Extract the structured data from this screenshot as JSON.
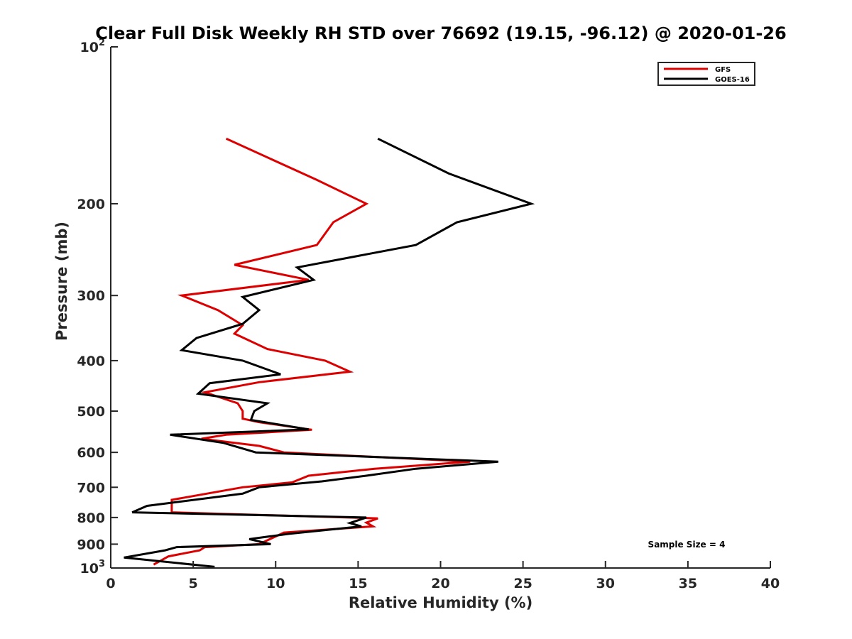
{
  "chart_data": {
    "type": "line",
    "title": "Clear Full Disk Weekly RH STD over 76692 (19.15, -96.12) @ 2020-01-26",
    "xlabel": "Relative Humidity (%)",
    "ylabel": "Pressure (mb)",
    "xlim": [
      0,
      40
    ],
    "ylim": [
      100,
      1000
    ],
    "yscale": "log",
    "yreversed": true,
    "xticks": [
      0,
      5,
      10,
      15,
      20,
      25,
      30,
      35,
      40
    ],
    "xtick_labels": [
      "0",
      "5",
      "10",
      "15",
      "20",
      "25",
      "30",
      "35",
      "40"
    ],
    "yticks": [
      {
        "value": 100,
        "base": "10",
        "exp": "2"
      },
      {
        "value": 200,
        "label": "200"
      },
      {
        "value": 300,
        "label": "300"
      },
      {
        "value": 400,
        "label": "400"
      },
      {
        "value": 500,
        "label": "500"
      },
      {
        "value": 600,
        "label": "600"
      },
      {
        "value": 700,
        "label": "700"
      },
      {
        "value": 800,
        "label": "800"
      },
      {
        "value": 900,
        "label": "900"
      },
      {
        "value": 1000,
        "base": "10",
        "exp": "3"
      }
    ],
    "grid": false,
    "legend_position": "top-right",
    "annotation": "Sample Size = 4",
    "series": [
      {
        "name": "GFS",
        "color": "#dd0000",
        "points": [
          [
            7.0,
            150
          ],
          [
            12.5,
            180
          ],
          [
            15.5,
            200
          ],
          [
            13.5,
            217
          ],
          [
            12.5,
            240
          ],
          [
            7.5,
            262
          ],
          [
            12.0,
            280
          ],
          [
            4.3,
            300
          ],
          [
            6.5,
            320
          ],
          [
            8.0,
            342
          ],
          [
            7.5,
            355
          ],
          [
            9.5,
            380
          ],
          [
            13.0,
            400
          ],
          [
            14.5,
            420
          ],
          [
            9.0,
            440
          ],
          [
            5.7,
            460
          ],
          [
            7.7,
            483
          ],
          [
            8.0,
            500
          ],
          [
            8.0,
            517
          ],
          [
            9.0,
            525
          ],
          [
            12.2,
            543
          ],
          [
            7.0,
            555
          ],
          [
            5.5,
            565
          ],
          [
            9.0,
            583
          ],
          [
            10.5,
            600
          ],
          [
            21.8,
            625
          ],
          [
            16.0,
            645
          ],
          [
            12.0,
            665
          ],
          [
            11.0,
            685
          ],
          [
            8.0,
            700
          ],
          [
            3.7,
            740
          ],
          [
            3.7,
            782
          ],
          [
            16.2,
            803
          ],
          [
            15.5,
            818
          ],
          [
            15.9,
            832
          ],
          [
            10.5,
            855
          ],
          [
            9.0,
            900
          ],
          [
            5.7,
            912
          ],
          [
            5.4,
            925
          ],
          [
            3.5,
            950
          ],
          [
            2.6,
            985
          ]
        ]
      },
      {
        "name": "GOES-16",
        "color": "#000000",
        "points": [
          [
            16.2,
            150
          ],
          [
            20.5,
            175
          ],
          [
            25.5,
            200
          ],
          [
            21.0,
            217
          ],
          [
            18.5,
            240
          ],
          [
            11.3,
            265
          ],
          [
            12.3,
            280
          ],
          [
            8.0,
            302
          ],
          [
            9.0,
            320
          ],
          [
            8.0,
            340
          ],
          [
            5.2,
            362
          ],
          [
            4.3,
            382
          ],
          [
            8.0,
            400
          ],
          [
            10.3,
            425
          ],
          [
            6.0,
            442
          ],
          [
            5.3,
            463
          ],
          [
            9.5,
            483
          ],
          [
            8.7,
            500
          ],
          [
            8.5,
            520
          ],
          [
            12.0,
            542
          ],
          [
            3.6,
            555
          ],
          [
            6.8,
            575
          ],
          [
            8.8,
            600
          ],
          [
            23.5,
            625
          ],
          [
            18.5,
            645
          ],
          [
            15.5,
            665
          ],
          [
            12.8,
            682
          ],
          [
            9.0,
            700
          ],
          [
            8.0,
            720
          ],
          [
            2.2,
            760
          ],
          [
            1.3,
            782
          ],
          [
            15.5,
            800
          ],
          [
            14.5,
            820
          ],
          [
            15.2,
            832
          ],
          [
            10.8,
            860
          ],
          [
            8.4,
            880
          ],
          [
            9.7,
            900
          ],
          [
            4.0,
            912
          ],
          [
            3.3,
            925
          ],
          [
            0.8,
            955
          ],
          [
            6.3,
            995
          ]
        ]
      }
    ]
  }
}
